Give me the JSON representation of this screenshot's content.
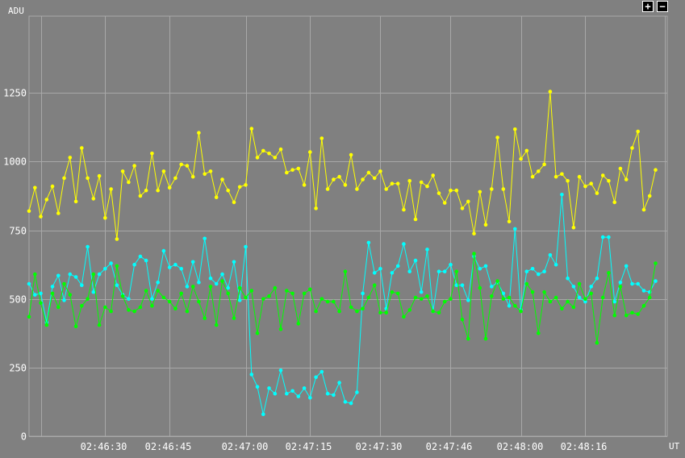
{
  "controls": {
    "zoom_in_label": "+",
    "zoom_out_label": "−"
  },
  "colors": {
    "background": "#808080",
    "grid": "#a8a8a8",
    "text": "#ffffff"
  },
  "chart_data": {
    "type": "line",
    "ylabel": "ADU",
    "xlabel": "UT",
    "ylim": [
      0,
      1530
    ],
    "xlim": [
      0,
      109
    ],
    "yticks": [
      0,
      250,
      500,
      750,
      1000,
      1250
    ],
    "xticks": [
      {
        "at": 13,
        "label": "02:46:30"
      },
      {
        "at": 24,
        "label": "02:46:45"
      },
      {
        "at": 37,
        "label": "02:47:00"
      },
      {
        "at": 48,
        "label": "02:47:15"
      },
      {
        "at": 60,
        "label": "02:47:30"
      },
      {
        "at": 72,
        "label": "02:47:46"
      },
      {
        "at": 84,
        "label": "02:48:00"
      },
      {
        "at": 95,
        "label": "02:48:16"
      }
    ],
    "minor_xgrid": [
      2,
      108.6
    ],
    "series": [
      {
        "color": "#ffff00",
        "values": [
          820,
          905,
          800,
          862,
          910,
          812,
          940,
          1015,
          855,
          1050,
          940,
          865,
          948,
          795,
          900,
          718,
          965,
          925,
          985,
          875,
          895,
          1030,
          895,
          965,
          905,
          940,
          990,
          985,
          945,
          1105,
          955,
          965,
          870,
          935,
          895,
          852,
          908,
          915,
          1120,
          1015,
          1040,
          1030,
          1015,
          1045,
          960,
          970,
          975,
          915,
          1035,
          830,
          1085,
          900,
          935,
          945,
          915,
          1025,
          900,
          935,
          960,
          940,
          965,
          900,
          920,
          920,
          825,
          930,
          790,
          925,
          910,
          950,
          885,
          850,
          895,
          895,
          830,
          855,
          738,
          890,
          770,
          900,
          1088,
          900,
          782,
          1118,
          1010,
          1040,
          945,
          965,
          990,
          1255,
          945,
          955,
          930,
          760,
          945,
          910,
          920,
          885,
          950,
          930,
          852,
          975,
          935,
          1050,
          1110,
          825,
          875,
          970
        ]
      },
      {
        "color": "#00ffff",
        "values": [
          555,
          515,
          520,
          415,
          545,
          585,
          495,
          590,
          580,
          550,
          690,
          525,
          590,
          610,
          630,
          550,
          515,
          500,
          625,
          655,
          640,
          500,
          560,
          675,
          615,
          625,
          610,
          545,
          635,
          560,
          720,
          575,
          555,
          590,
          540,
          635,
          495,
          690,
          225,
          180,
          80,
          175,
          155,
          240,
          155,
          165,
          145,
          175,
          140,
          215,
          235,
          155,
          150,
          195,
          125,
          120,
          160,
          520,
          705,
          595,
          610,
          465,
          595,
          620,
          700,
          600,
          640,
          525,
          680,
          455,
          600,
          600,
          625,
          550,
          550,
          495,
          655,
          610,
          620,
          545,
          560,
          520,
          475,
          755,
          460,
          600,
          610,
          590,
          600,
          660,
          625,
          880,
          575,
          545,
          505,
          490,
          545,
          575,
          725,
          725,
          490,
          560,
          620,
          555,
          555,
          530,
          525,
          565
        ]
      },
      {
        "color": "#00ff00",
        "values": [
          435,
          590,
          485,
          405,
          520,
          470,
          555,
          515,
          400,
          475,
          500,
          590,
          405,
          470,
          455,
          620,
          510,
          460,
          455,
          470,
          530,
          475,
          530,
          505,
          490,
          465,
          520,
          455,
          545,
          490,
          430,
          545,
          405,
          565,
          520,
          430,
          540,
          505,
          530,
          375,
          500,
          510,
          540,
          390,
          530,
          520,
          410,
          520,
          535,
          455,
          500,
          490,
          490,
          455,
          600,
          470,
          455,
          465,
          505,
          550,
          450,
          450,
          525,
          520,
          435,
          460,
          505,
          500,
          510,
          455,
          450,
          490,
          500,
          600,
          425,
          355,
          665,
          540,
          355,
          510,
          565,
          500,
          505,
          475,
          455,
          555,
          525,
          375,
          525,
          490,
          505,
          465,
          490,
          470,
          555,
          500,
          520,
          340,
          505,
          595,
          440,
          545,
          440,
          450,
          445,
          475,
          505,
          630
        ]
      }
    ]
  }
}
